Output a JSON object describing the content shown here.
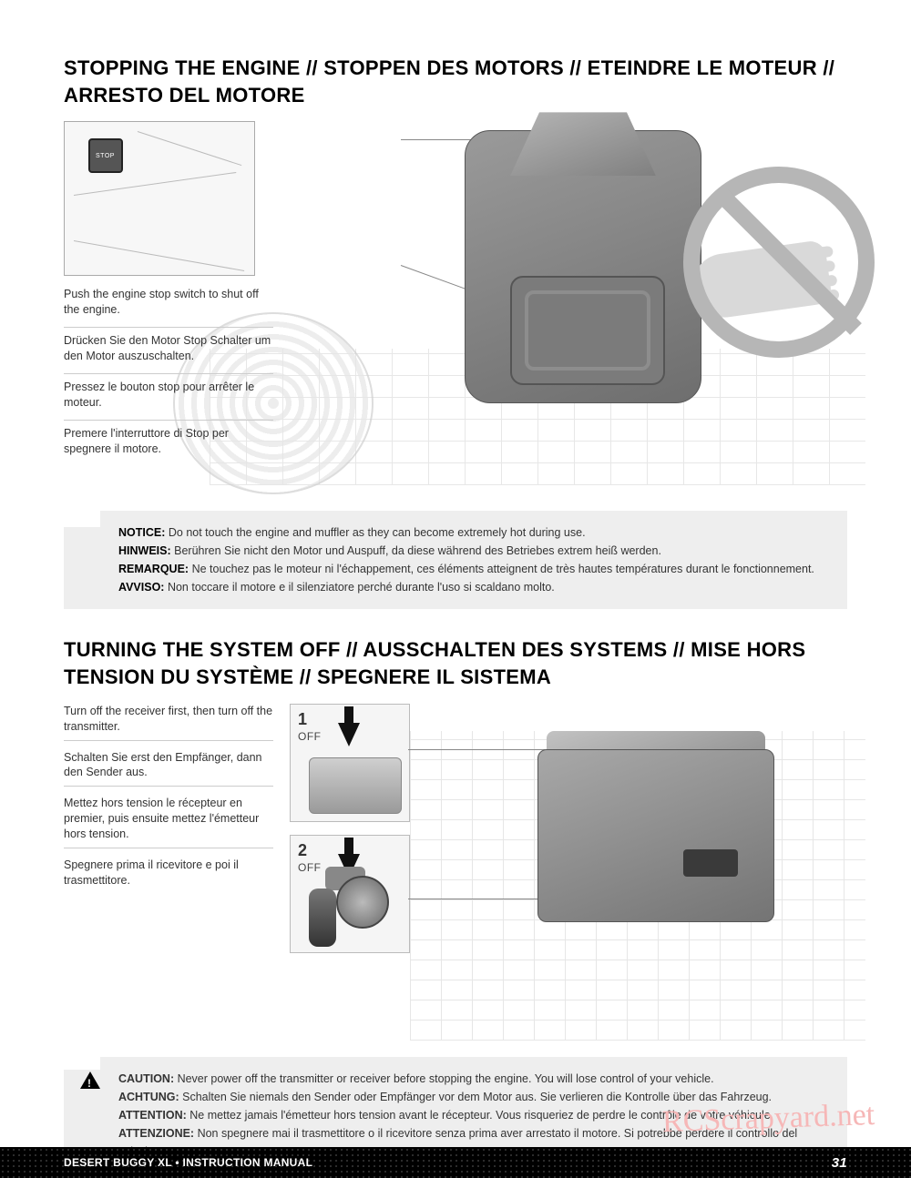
{
  "section1": {
    "title": "STOPPING THE ENGINE // STOPPEN DES MOTORS // ETEINDRE LE MOTEUR // ARRESTO DEL MOTORE",
    "captions": {
      "en": "Push the engine stop switch to shut off the engine.",
      "de": "Drücken Sie den Motor Stop Schalter um den Motor auszuschalten.",
      "fr": "Pressez le bouton stop pour arrêter le moteur.",
      "it": "Premere l'interruttore di Stop per spegnere il motore."
    },
    "notice": {
      "en_label": "NOTICE:",
      "en": " Do not touch the engine and muffler as they can become extremely hot during use.",
      "de_label": "HINWEIS:",
      "de": " Berühren Sie nicht den Motor und Auspuff, da diese während des Betriebes extrem heiß werden.",
      "fr_label": "REMARQUE:",
      "fr": " Ne touchez pas le moteur ni l'échappement, ces éléments atteignent de très hautes températures durant le fonctionnement.",
      "it_label": "AVVISO:",
      "it": " Non toccare il motore e il silenziatore perché durante l'uso si scaldano molto."
    }
  },
  "section2": {
    "title": "TURNING THE SYSTEM OFF // AUSSCHALTEN DES SYSTEMS // MISE HORS TENSION DU SYSTÈME // SPEGNERE IL SISTEMA",
    "captions": {
      "en": "Turn off the receiver first, then turn off the transmitter.",
      "de": "Schalten Sie erst den Empfänger, dann den Sender aus.",
      "fr": "Mettez hors tension le récepteur en premier, puis ensuite mettez l'émetteur hors tension.",
      "it": "Spegnere prima il ricevitore e poi il trasmettitore."
    },
    "steps": {
      "s1_num": "1",
      "s1_label": "OFF",
      "s2_num": "2",
      "s2_label": "OFF"
    },
    "caution": {
      "en_label": "CAUTION:",
      "en": " Never power off the transmitter or receiver before stopping the engine. You will lose control of your vehicle.",
      "de_label": "ACHTUNG:",
      "de": " Schalten Sie niemals den Sender oder Empfänger vor dem Motor aus. Sie verlieren die Kontrolle über das Fahrzeug.",
      "fr_label": "ATTENTION:",
      "fr": " Ne mettez jamais l'émetteur hors tension avant le récepteur. Vous risqueriez de perdre le contrôle de votre véhicule.",
      "it_label": "ATTENZIONE:",
      "it": " Non spegnere mai il trasmettitore o il ricevitore senza prima aver arrestato il motore. Si potrebbe perdere il controllo del veicolo."
    }
  },
  "watermark": "RCScrapyard.net",
  "footer": {
    "left": "DESERT BUGGY XL • INSTRUCTION MANUAL",
    "page": "31"
  }
}
